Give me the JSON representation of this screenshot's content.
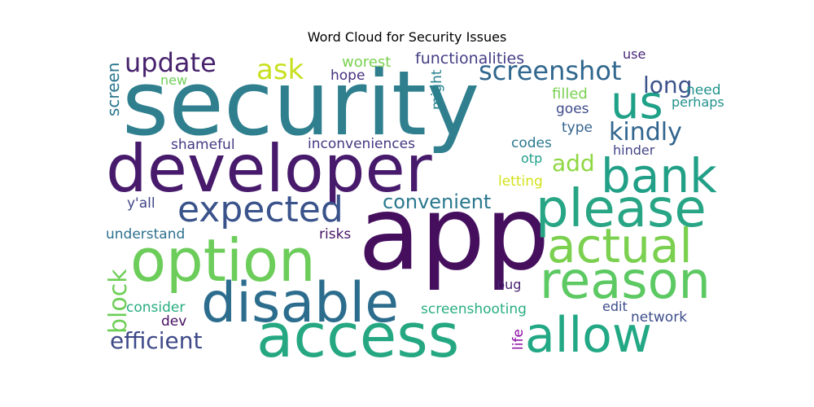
{
  "chart_data": {
    "type": "wordcloud",
    "title": "Word Cloud for Security Issues",
    "words": [
      {
        "text": "security",
        "color": "#2f7f8e"
      },
      {
        "text": "app",
        "color": "#450f5e"
      },
      {
        "text": "developer",
        "color": "#471a6c"
      },
      {
        "text": "access",
        "color": "#25a882"
      },
      {
        "text": "option",
        "color": "#6ccd5a"
      },
      {
        "text": "please",
        "color": "#27a584"
      },
      {
        "text": "disable",
        "color": "#2c6d8e"
      },
      {
        "text": "allow",
        "color": "#22a884"
      },
      {
        "text": "reason",
        "color": "#5dc963"
      },
      {
        "text": "bank",
        "color": "#22a087"
      },
      {
        "text": "actual",
        "color": "#7bd04f"
      },
      {
        "text": "us",
        "color": "#1fa188"
      },
      {
        "text": "expected",
        "color": "#3a538b"
      },
      {
        "text": "screenshot",
        "color": "#30678e"
      },
      {
        "text": "update",
        "color": "#46226d"
      },
      {
        "text": "kindly",
        "color": "#32658e"
      },
      {
        "text": "long",
        "color": "#3b528b"
      },
      {
        "text": "ask",
        "color": "#c8e020"
      },
      {
        "text": "efficient",
        "color": "#3e4989"
      },
      {
        "text": "convenient",
        "color": "#2a788e"
      },
      {
        "text": "add",
        "color": "#8fd744"
      },
      {
        "text": "block",
        "color": "#6ece58"
      },
      {
        "text": "functionalities",
        "color": "#433e85"
      },
      {
        "text": "inconveniences",
        "color": "#453781"
      },
      {
        "text": "worest",
        "color": "#7ad151"
      },
      {
        "text": "hope",
        "color": "#46307e"
      },
      {
        "text": "might",
        "color": "#26828e"
      },
      {
        "text": "use",
        "color": "#482677"
      },
      {
        "text": "new",
        "color": "#6ece58"
      },
      {
        "text": "screen",
        "color": "#2a768e"
      },
      {
        "text": "filled",
        "color": "#7ad151"
      },
      {
        "text": "need",
        "color": "#20928c"
      },
      {
        "text": "perhaps",
        "color": "#21918c"
      },
      {
        "text": "goes",
        "color": "#3e4c8a"
      },
      {
        "text": "type",
        "color": "#33638d"
      },
      {
        "text": "shameful",
        "color": "#443983"
      },
      {
        "text": "codes",
        "color": "#2a788e"
      },
      {
        "text": "hinder",
        "color": "#414487"
      },
      {
        "text": "otp",
        "color": "#1f9e89"
      },
      {
        "text": "letting",
        "color": "#d2e21b"
      },
      {
        "text": "y'all",
        "color": "#404588"
      },
      {
        "text": "understand",
        "color": "#2d708e"
      },
      {
        "text": "risks",
        "color": "#471365"
      },
      {
        "text": "bug",
        "color": "#482071"
      },
      {
        "text": "consider",
        "color": "#26ad81"
      },
      {
        "text": "screenshooting",
        "color": "#28ae80"
      },
      {
        "text": "edit",
        "color": "#3d4d8a"
      },
      {
        "text": "dev",
        "color": "#470e61"
      },
      {
        "text": "network",
        "color": "#3d4d8a"
      },
      {
        "text": "life",
        "color": "#8b0aa5"
      }
    ]
  }
}
